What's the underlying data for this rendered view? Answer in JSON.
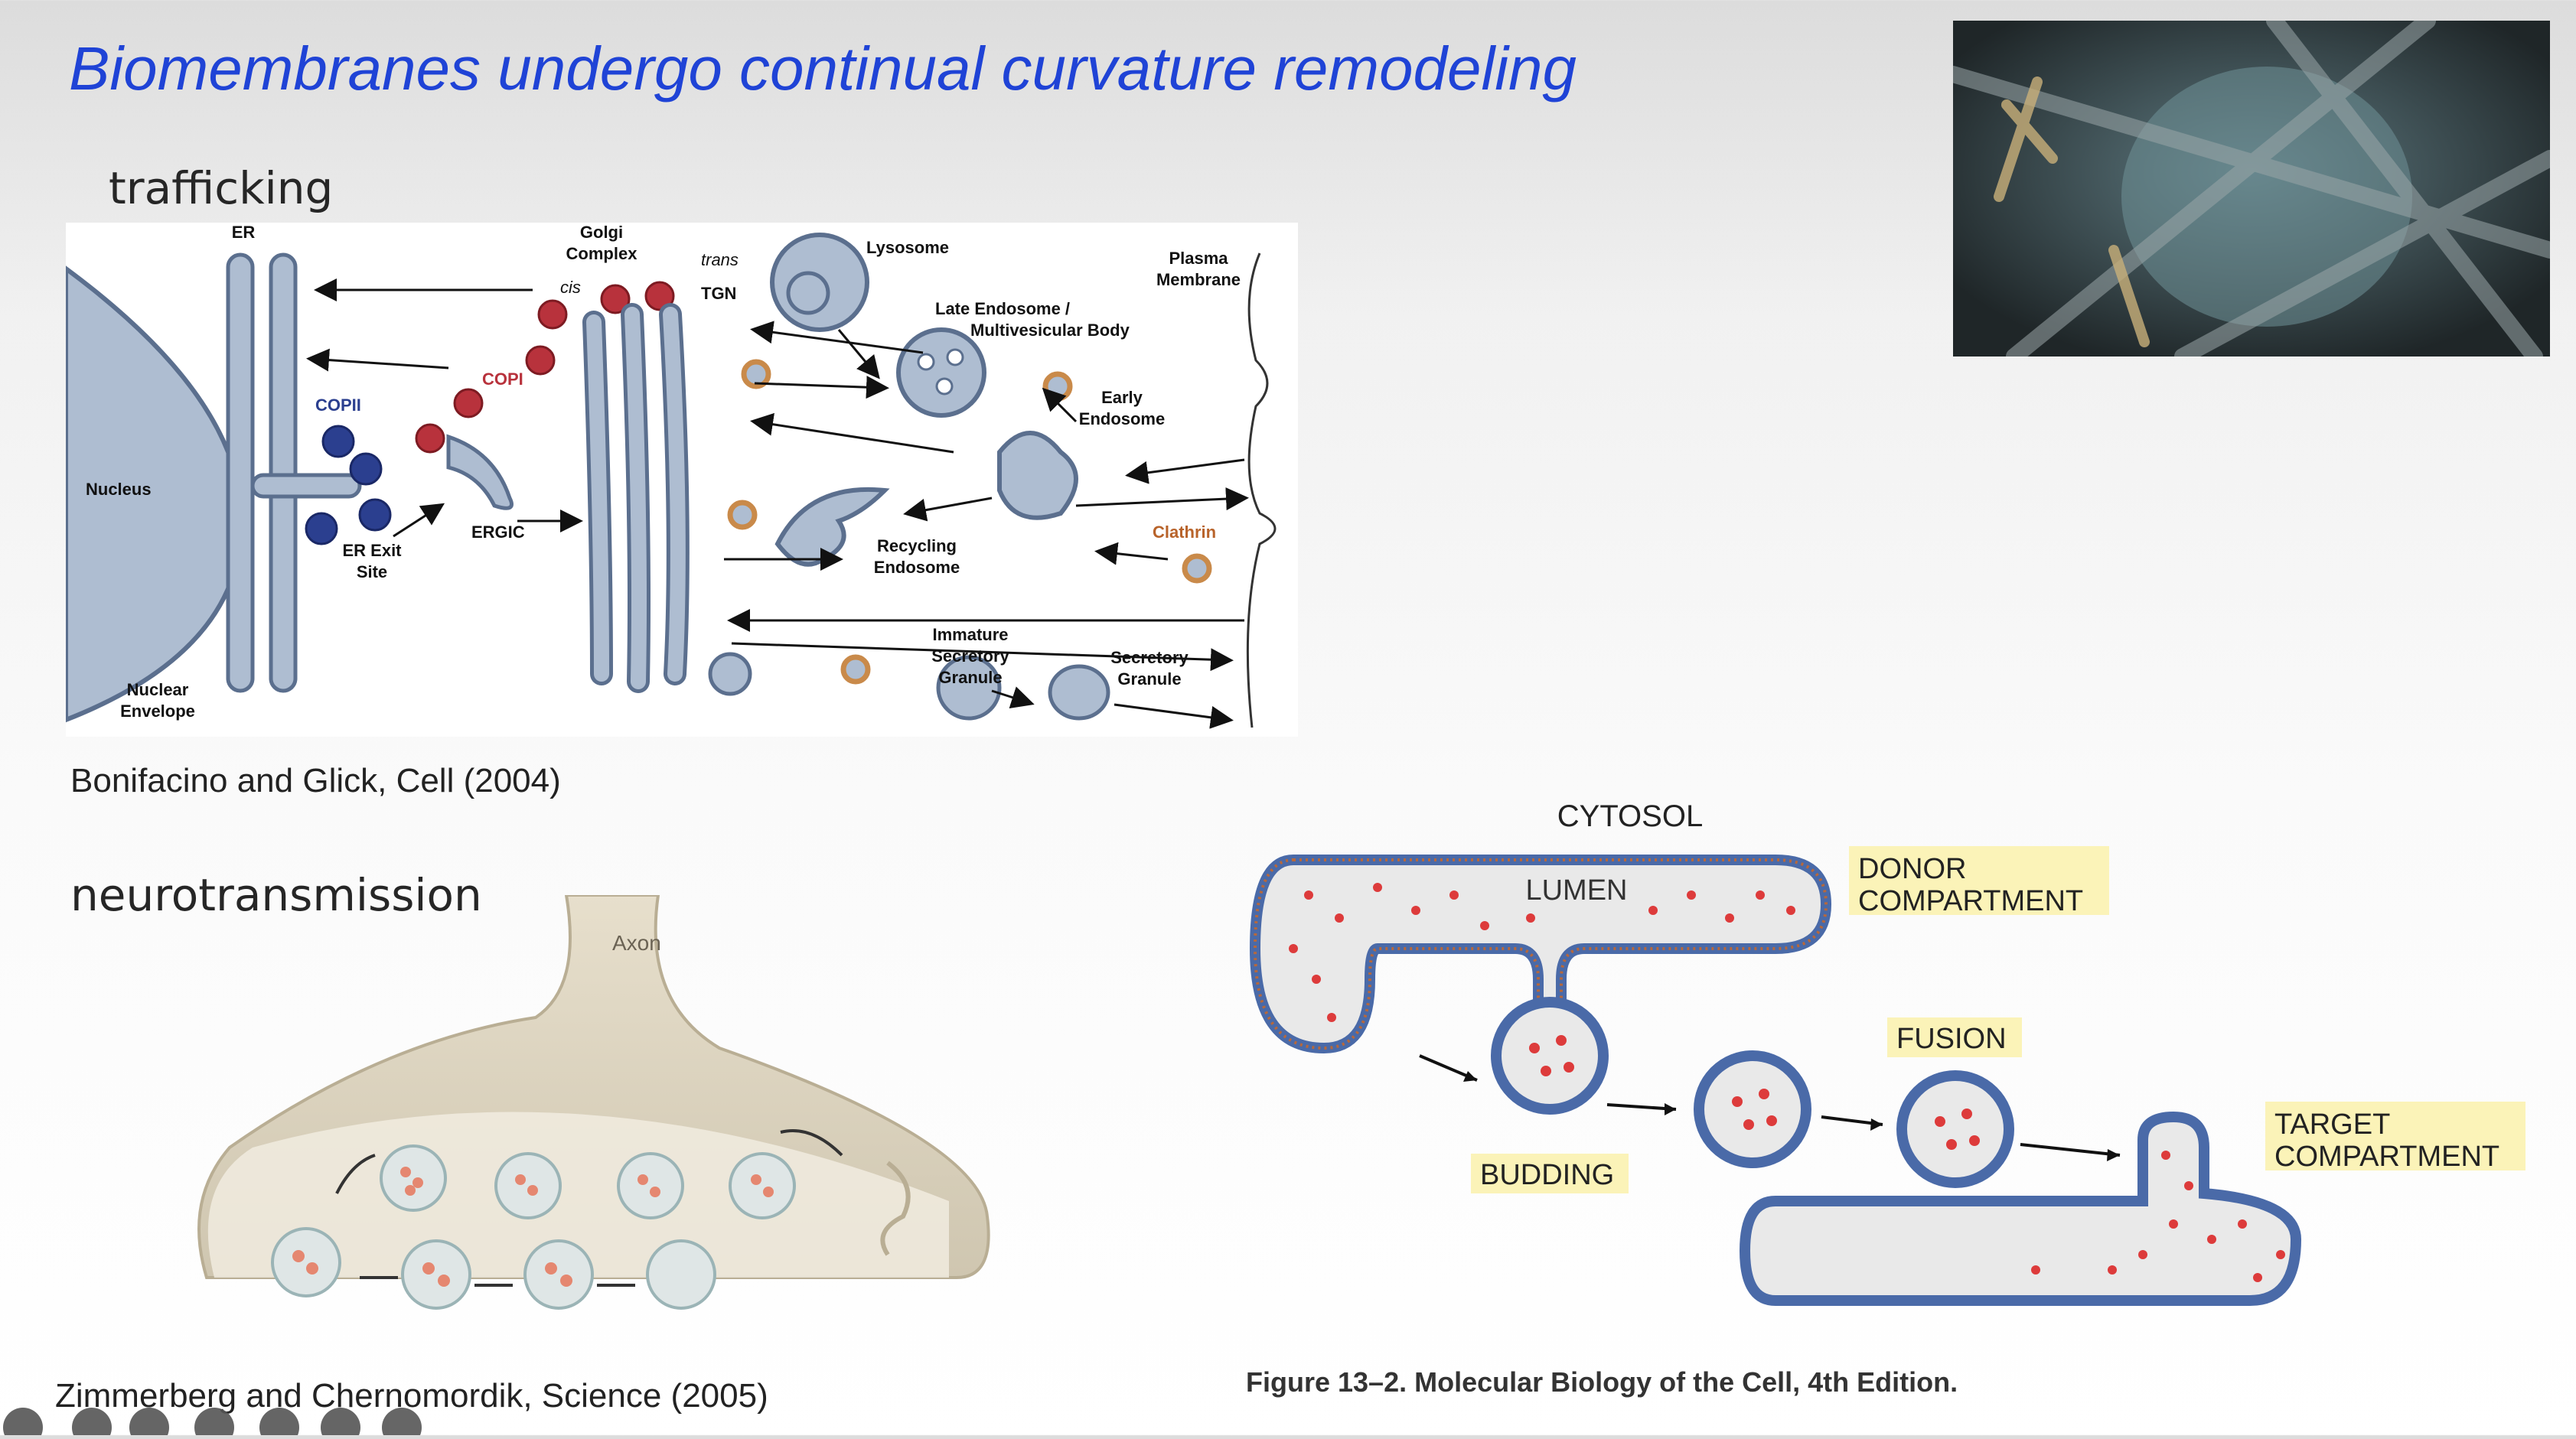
{
  "slide": {
    "title": "Biomembranes undergo continual curvature remodeling",
    "section_trafficking": "trafficking",
    "section_neuro": "neurotransmission",
    "cite_trafficking": "Bonifacino and Glick, Cell (2004)",
    "cite_neuro": "Zimmerberg and Chernomordik, Science (2005)",
    "cite_mbc": "Figure 13–2. Molecular Biology of the Cell, 4th Edition."
  },
  "trafficking_labels": {
    "er": "ER",
    "golgi_line1": "Golgi",
    "golgi_line2": "Complex",
    "trans": "trans",
    "cis": "cis",
    "tgn": "TGN",
    "lysosome": "Lysosome",
    "plasma_line1": "Plasma",
    "plasma_line2": "Membrane",
    "late_endo_line1": "Late Endosome /",
    "late_endo_line2": "Multivesicular Body",
    "copii": "COPII",
    "copi": "COPI",
    "early_line1": "Early",
    "early_line2": "Endosome",
    "nucleus": "Nucleus",
    "ergic": "ERGIC",
    "er_exit_line1": "ER Exit",
    "er_exit_line2": "Site",
    "clathrin": "Clathrin",
    "recycling_line1": "Recycling",
    "recycling_line2": "Endosome",
    "immature_line1": "Immature",
    "immature_line2": "Secretory",
    "immature_line3": "Granule",
    "secretory_line1": "Secretory",
    "secretory_line2": "Granule",
    "nuclear_line1": "Nuclear",
    "nuclear_line2": "Envelope"
  },
  "neuro_labels": {
    "axon": "Axon"
  },
  "mbc_labels": {
    "cytosol": "CYTOSOL",
    "lumen": "LUMEN",
    "donor_line1": "DONOR",
    "donor_line2": "COMPARTMENT",
    "fusion": "FUSION",
    "budding": "BUDDING",
    "target_line1": "TARGET",
    "target_line2": "COMPARTMENT"
  },
  "colors": {
    "title_blue": "#1f43d6",
    "membrane_blue": "#8ea4c2",
    "copii_blue": "#2b3f8f",
    "copi_red": "#b8323c",
    "clathrin_orange": "#c98a4a",
    "label_yellow": "#fbf3b8",
    "vesicle_dot_red": "#dd3b3b"
  },
  "video_player": {
    "toolbar_icons": [
      "back-arrow-icon",
      "pen-icon",
      "search-icon",
      "captions-icon",
      "camera-icon",
      "more-icon",
      "forward-arrow-icon"
    ]
  }
}
